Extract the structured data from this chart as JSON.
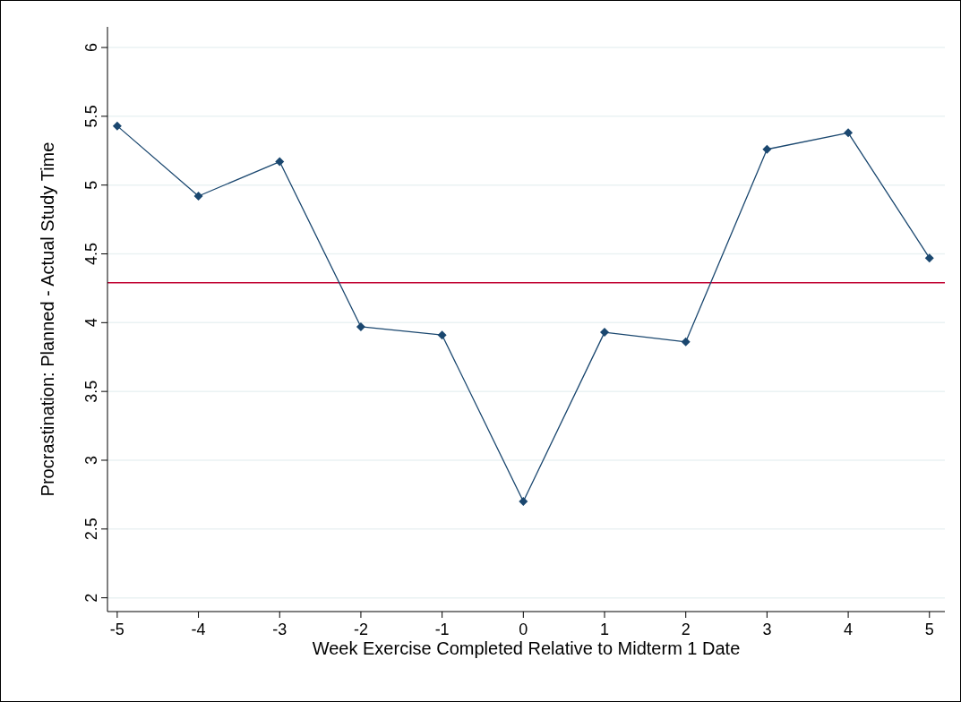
{
  "chart_data": {
    "type": "line",
    "xlabel": "Week Exercise Completed Relative to Midterm 1 Date",
    "ylabel": "Procrastination: Planned - Actual Study Time",
    "x": [
      -5,
      -4,
      -3,
      -2,
      -1,
      0,
      1,
      2,
      3,
      4,
      5
    ],
    "series": [
      {
        "color": "#1a476f",
        "values": [
          5.43,
          4.92,
          5.17,
          3.97,
          3.91,
          2.7,
          3.93,
          3.86,
          5.26,
          5.38,
          4.47
        ]
      }
    ],
    "xlim": [
      -5.12,
      5.19
    ],
    "xticks": [
      -5,
      -4,
      -3,
      -2,
      -1,
      0,
      1,
      2,
      3,
      4,
      5
    ],
    "ylim": [
      1.9,
      6.15
    ],
    "yticks": [
      2,
      2.5,
      3,
      3.5,
      4,
      4.5,
      5,
      5.5,
      6
    ],
    "ref_lines": [
      {
        "axis": "y",
        "value": 4.29,
        "color": "#c10534"
      }
    ],
    "grid": "y",
    "marker": "diamond",
    "line_style": "solid"
  }
}
